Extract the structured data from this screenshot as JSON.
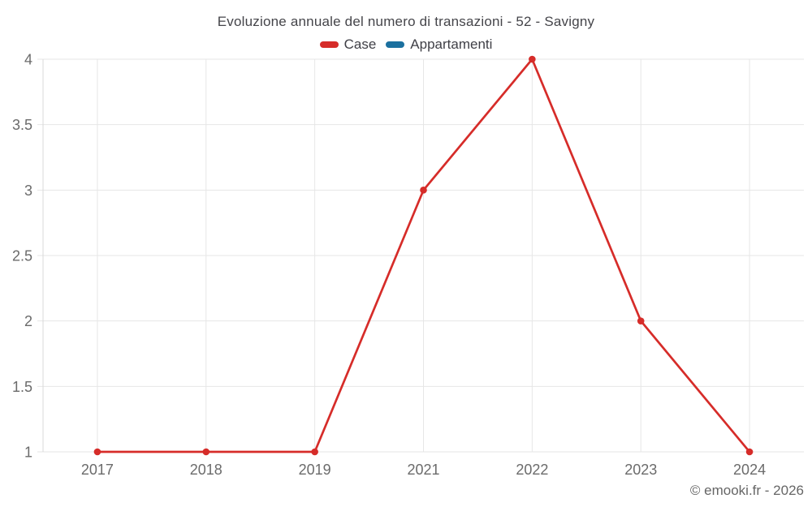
{
  "chart_data": {
    "type": "line",
    "title": "Evoluzione annuale del numero di transazioni - 52 - Savigny",
    "categories": [
      "2017",
      "2018",
      "2019",
      "2021",
      "2022",
      "2023",
      "2024"
    ],
    "series": [
      {
        "name": "Case",
        "color": "#d62c29",
        "values": [
          1,
          1,
          1,
          3,
          4,
          2,
          1
        ]
      },
      {
        "name": "Appartamenti",
        "color": "#1b709f",
        "values": []
      }
    ],
    "xlabel": "",
    "ylabel": "",
    "yticks": [
      1,
      1.5,
      2,
      2.5,
      3,
      3.5,
      4
    ],
    "ylim": [
      1,
      4
    ],
    "grid": true,
    "legend_position": "top",
    "credits": "© emooki.fr - 2026",
    "colors": {
      "gridline": "#e6e6e6",
      "axis_line": "#d9d9d9",
      "tick_label": "#6b6b6b"
    }
  }
}
